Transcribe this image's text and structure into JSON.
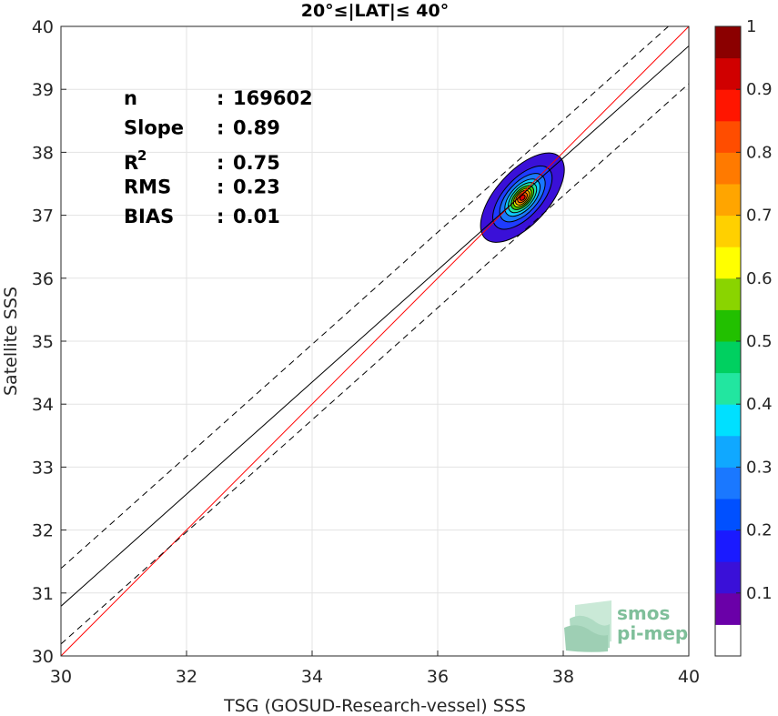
{
  "chart_data": {
    "type": "scatter",
    "title": "20°≤|LAT|≤ 40°",
    "xlabel": "TSG (GOSUD-Research-vessel) SSS",
    "ylabel": "Satellite SSS",
    "xlim": [
      30,
      40
    ],
    "ylim": [
      30,
      40
    ],
    "xticks": [
      "30",
      "32",
      "34",
      "36",
      "38",
      "40"
    ],
    "yticks": [
      "30",
      "31",
      "32",
      "33",
      "34",
      "35",
      "36",
      "37",
      "38",
      "39",
      "40"
    ],
    "grid": true,
    "stats": [
      {
        "key": "n",
        "sep": ":",
        "value": "169602"
      },
      {
        "key": "Slope",
        "sep": ":",
        "value": "0.89"
      },
      {
        "key": "R",
        "sup": "2",
        "sep": ":",
        "value": "0.75"
      },
      {
        "key": "RMS",
        "sep": ":",
        "value": "0.23"
      },
      {
        "key": "BIAS",
        "sep": ":",
        "value": "0.01"
      }
    ],
    "lines": [
      {
        "name": "1:1",
        "color": "#ff0000",
        "style": "solid",
        "x": [
          30,
          40
        ],
        "y": [
          30,
          40
        ]
      },
      {
        "name": "fit",
        "color": "#000000",
        "style": "solid",
        "x": [
          30,
          40
        ],
        "y": [
          30.79,
          39.69
        ]
      },
      {
        "name": "fit+",
        "color": "#000000",
        "style": "dashed",
        "x": [
          30,
          40
        ],
        "y": [
          31.39,
          40.29
        ]
      },
      {
        "name": "fit-",
        "color": "#000000",
        "style": "dashed",
        "x": [
          30,
          40
        ],
        "y": [
          30.19,
          39.09
        ]
      }
    ],
    "density": {
      "center": [
        37.35,
        37.28
      ],
      "angle_deg": 48,
      "levels": [
        {
          "level": 0.05,
          "a": 0.88,
          "b": 0.42,
          "color": "#3a10d8"
        },
        {
          "level": 0.15,
          "a": 0.62,
          "b": 0.3,
          "color": "#1f3cff"
        },
        {
          "level": 0.25,
          "a": 0.47,
          "b": 0.24,
          "color": "#1a78ff"
        },
        {
          "level": 0.35,
          "a": 0.36,
          "b": 0.19,
          "color": "#10c8ff"
        },
        {
          "level": 0.45,
          "a": 0.29,
          "b": 0.155,
          "color": "#22e6a0"
        },
        {
          "level": 0.55,
          "a": 0.23,
          "b": 0.125,
          "color": "#4ad000"
        },
        {
          "level": 0.65,
          "a": 0.18,
          "b": 0.1,
          "color": "#e6ee00"
        },
        {
          "level": 0.75,
          "a": 0.14,
          "b": 0.08,
          "color": "#ffa500"
        },
        {
          "level": 0.85,
          "a": 0.095,
          "b": 0.058,
          "color": "#ff5a00"
        },
        {
          "level": 0.95,
          "a": 0.05,
          "b": 0.035,
          "color": "#e00000"
        }
      ]
    },
    "colorbar": {
      "ticks": [
        "0.1",
        "0.2",
        "0.3",
        "0.4",
        "0.5",
        "0.6",
        "0.7",
        "0.8",
        "0.9",
        "1"
      ],
      "colors": [
        "#ffffff",
        "#6a00a8",
        "#3a10d8",
        "#1a1aff",
        "#0050ff",
        "#1a78ff",
        "#10a8ff",
        "#00e0ff",
        "#22e6a0",
        "#00d060",
        "#22c000",
        "#8ad400",
        "#ffff00",
        "#ffd000",
        "#ffa500",
        "#ff7a00",
        "#ff4d00",
        "#ff1500",
        "#d00000",
        "#8b0000"
      ]
    }
  },
  "logo": {
    "line1": "smos",
    "line2": "pi-mep"
  }
}
